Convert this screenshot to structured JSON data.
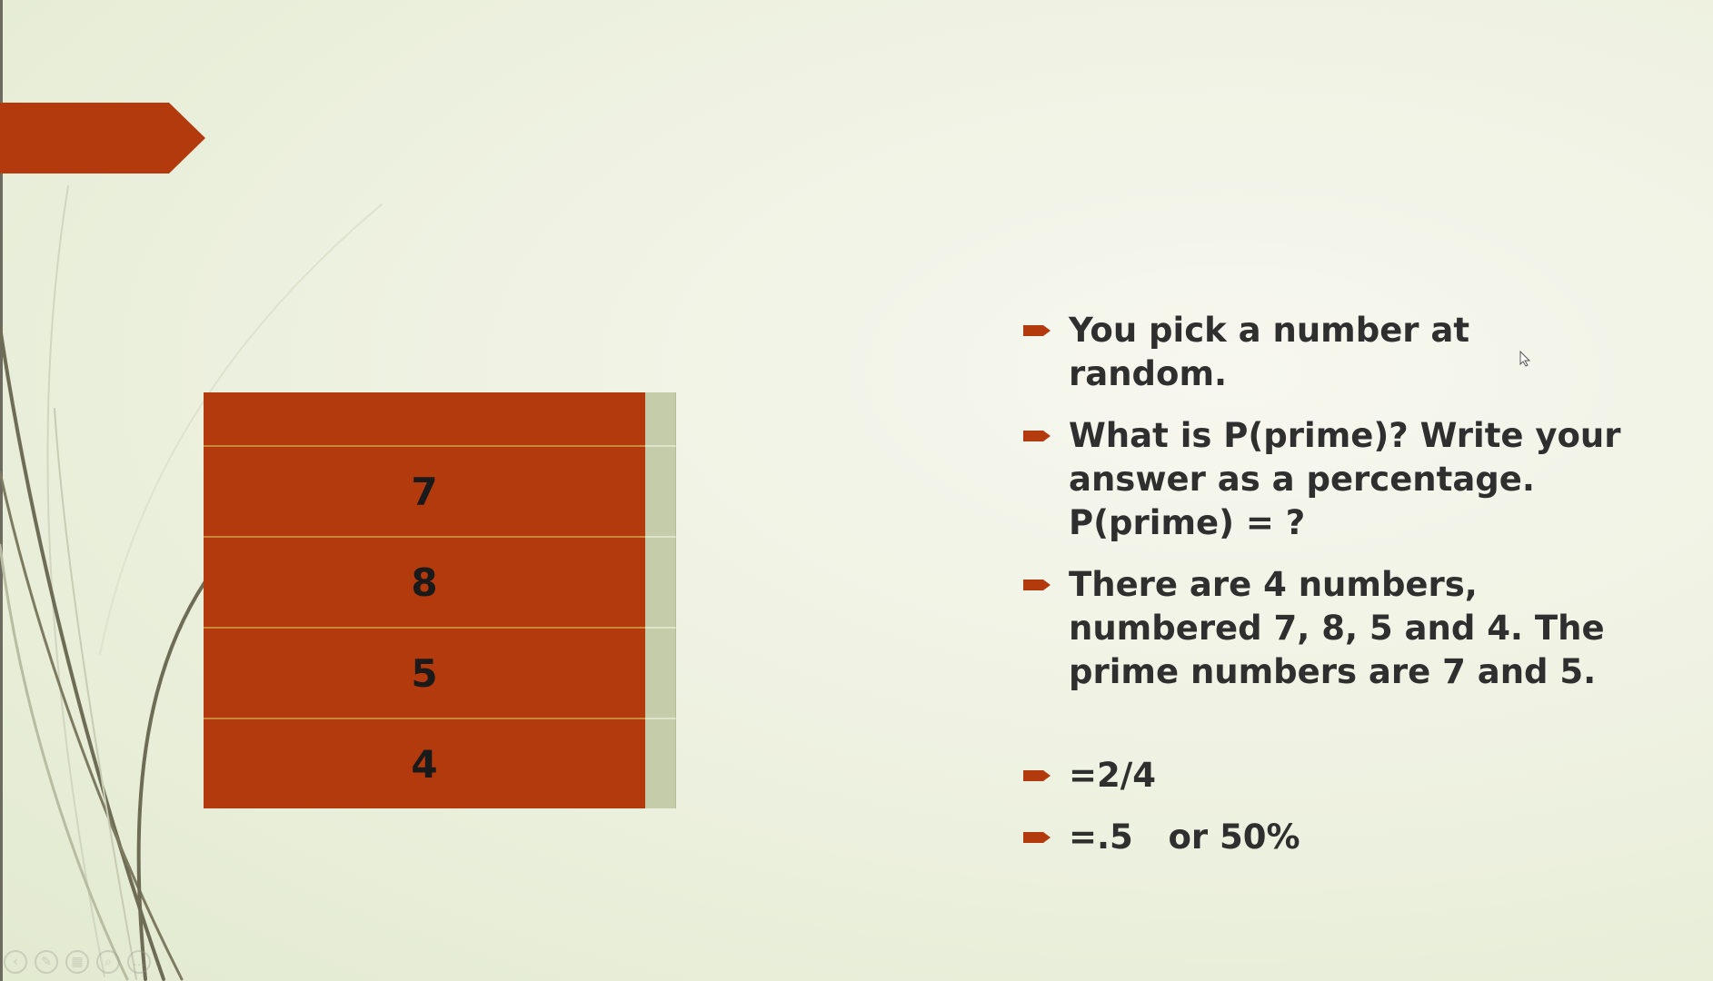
{
  "colors": {
    "accent": "#b33a0d",
    "text": "#2f2f2f",
    "card_number": "#1a1a1a",
    "card_tab": "#c5ccaa"
  },
  "cards": [
    {
      "label": ""
    },
    {
      "label": "7"
    },
    {
      "label": "8"
    },
    {
      "label": "5"
    },
    {
      "label": "4"
    }
  ],
  "bullets": [
    {
      "text": "You pick a number at random."
    },
    {
      "text": "What is P(prime)? Write your answer as a percentage. P(prime) = ?"
    },
    {
      "text": "There are 4 numbers, numbered 7, 8, 5 and 4. The prime numbers are 7 and 5."
    },
    {
      "text": "=2/4"
    },
    {
      "text": "=.5   or 50%"
    }
  ],
  "icons": {
    "bullet": "arrow-bullet-icon",
    "toolbar": [
      "prev-icon",
      "pen-icon",
      "slides-icon",
      "zoom-icon",
      "more-icon"
    ]
  }
}
